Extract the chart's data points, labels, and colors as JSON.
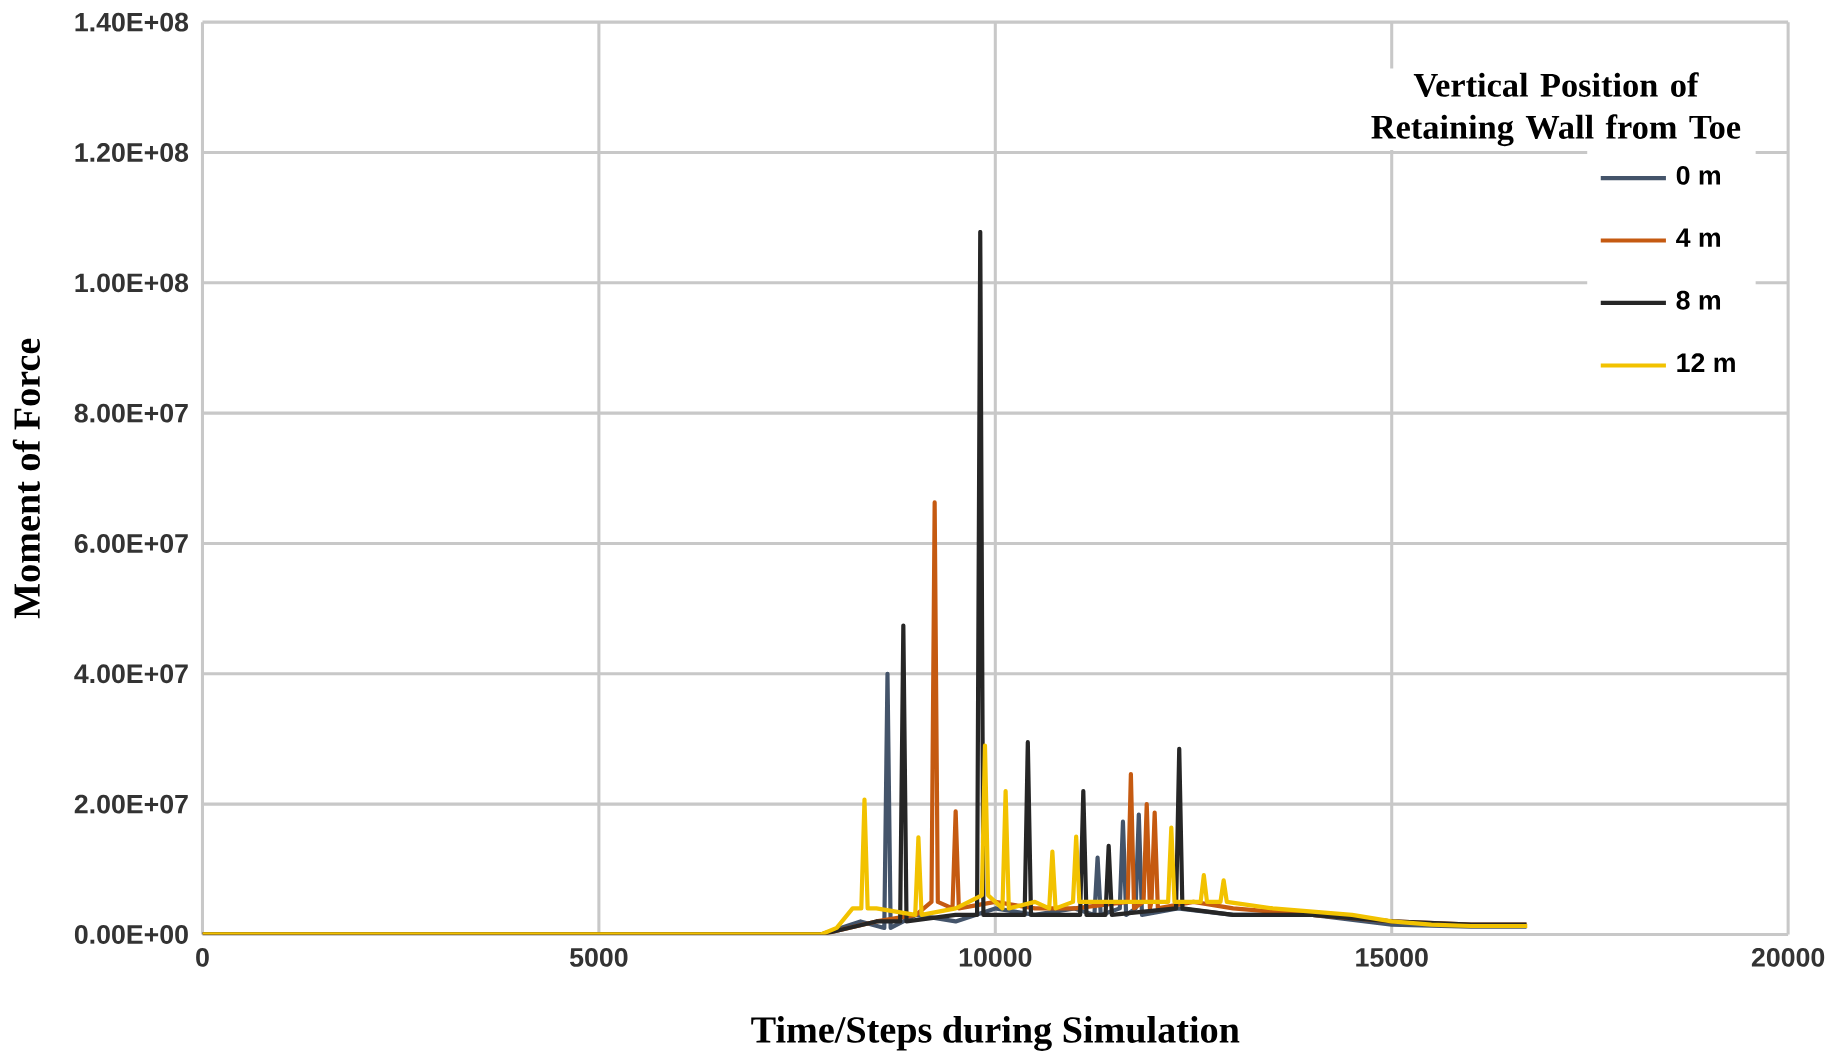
{
  "chart_data": {
    "type": "line",
    "xlabel": "Time/Steps during Simulation",
    "ylabel": "Moment of Force",
    "legend_title": "Vertical Position of Retaining Wall from Toe",
    "legend": "top right",
    "grid": true,
    "marker": "none",
    "line_style": "solid",
    "xlim": [
      0,
      20000
    ],
    "xticks": [
      0,
      5000,
      10000,
      15000,
      20000
    ],
    "ylim": [
      0,
      140000000
    ],
    "yticks": [
      {
        "value": 0,
        "label": "0.00E+00"
      },
      {
        "value": 20000000,
        "label": "2.00E+07"
      },
      {
        "value": 40000000,
        "label": "4.00E+07"
      },
      {
        "value": 60000000,
        "label": "6.00E+07"
      },
      {
        "value": 80000000,
        "label": "8.00E+07"
      },
      {
        "value": 100000000,
        "label": "1.00E+08"
      },
      {
        "value": 120000000,
        "label": "1.20E+08"
      },
      {
        "value": 140000000,
        "label": "1.40E+08"
      }
    ],
    "series": [
      {
        "name": "0 m",
        "color": "#44546a",
        "x": [
          0,
          7800,
          8300,
          8600,
          8640,
          8680,
          9000,
          9500,
          10000,
          10500,
          11000,
          11250,
          11290,
          11330,
          11570,
          11610,
          11650,
          11770,
          11810,
          11850,
          12300,
          13000,
          14000,
          15000,
          16000,
          16700
        ],
        "values": [
          0,
          0,
          2000000.0,
          1000000.0,
          40000000.0,
          1000000.0,
          3000000.0,
          2000000.0,
          4000000.0,
          3000000.0,
          4000000.0,
          3000000.0,
          11800000.0,
          3000000.0,
          4000000.0,
          17300000.0,
          3000000.0,
          4000000.0,
          18400000.0,
          3000000.0,
          4000000.0,
          3000000.0,
          3000000.0,
          1500000.0,
          1200000.0,
          1200000.0
        ]
      },
      {
        "name": "4 m",
        "color": "#c55a11",
        "x": [
          0,
          7800,
          8500,
          9000,
          9195,
          9235,
          9275,
          9460,
          9500,
          9540,
          10000,
          10500,
          11000,
          11670,
          11710,
          11750,
          11870,
          11910,
          11950,
          11970,
          12010,
          12050,
          12500,
          13000,
          14000,
          15000,
          16000,
          16700
        ],
        "values": [
          0,
          0,
          2000000.0,
          3000000.0,
          5000000.0,
          66300000.0,
          5000000.0,
          4000000.0,
          18900000.0,
          4000000.0,
          5000000.0,
          4000000.0,
          4000000.0,
          5000000.0,
          24600000.0,
          4000000.0,
          5000000.0,
          20000000.0,
          4000000.0,
          5000000.0,
          18700000.0,
          4000000.0,
          5000000.0,
          4000000.0,
          3000000.0,
          2000000.0,
          1500000.0,
          1500000.0
        ]
      },
      {
        "name": "8 m",
        "color": "#262626",
        "x": [
          0,
          7800,
          8500,
          8800,
          8840,
          8880,
          9500,
          9770,
          9810,
          9850,
          10370,
          10410,
          10450,
          11070,
          11110,
          11150,
          11390,
          11430,
          11470,
          12280,
          12320,
          12360,
          13000,
          14000,
          15000,
          16000,
          16700
        ],
        "values": [
          0,
          0,
          2000000.0,
          2000000.0,
          47400000.0,
          2000000.0,
          3000000.0,
          3000000.0,
          107800000.0,
          3000000.0,
          3000000.0,
          29500000.0,
          3000000.0,
          3000000.0,
          22000000.0,
          3000000.0,
          3000000.0,
          13600000.0,
          3000000.0,
          4000000.0,
          28500000.0,
          4000000.0,
          3000000.0,
          3000000.0,
          2000000.0,
          1500000.0,
          1500000.0
        ]
      },
      {
        "name": "12 m",
        "color": "#f2c200",
        "x": [
          0,
          7800,
          8000,
          8200,
          8310,
          8350,
          8390,
          8500,
          8990,
          9030,
          9070,
          9500,
          9830,
          9870,
          9910,
          10090,
          10130,
          10170,
          10500,
          10680,
          10720,
          10760,
          10980,
          11020,
          11060,
          11500,
          12180,
          12220,
          12260,
          12590,
          12630,
          12670,
          12840,
          12880,
          12920,
          13500,
          14000,
          14500,
          15000,
          15500,
          16000,
          16710
        ],
        "values": [
          0,
          0,
          1000000.0,
          4000000.0,
          4000000.0,
          20700000.0,
          4000000.0,
          4000000.0,
          3000000.0,
          14900000.0,
          3000000.0,
          4000000.0,
          6000000.0,
          29000000.0,
          6000000.0,
          4000000.0,
          22000000.0,
          4000000.0,
          5000000.0,
          4000000.0,
          12700000.0,
          4000000.0,
          5000000.0,
          15000000.0,
          5000000.0,
          5000000.0,
          5000000.0,
          16400000.0,
          5000000.0,
          5000000.0,
          9100000.0,
          5000000.0,
          5000000.0,
          8300000.0,
          5000000.0,
          4000000.0,
          3500000.0,
          3000000.0,
          2000000.0,
          1500000.0,
          1300000.0,
          1300000.0
        ]
      }
    ]
  }
}
